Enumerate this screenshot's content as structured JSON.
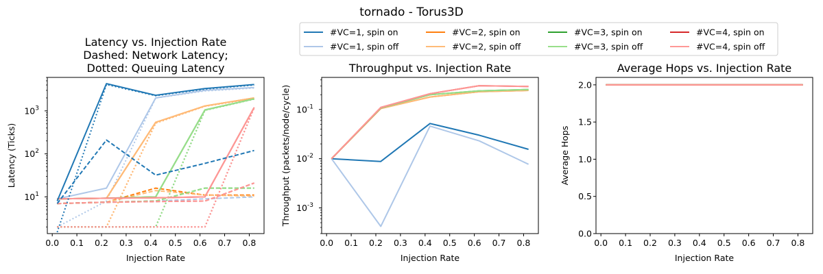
{
  "suptitle": "tornado - Torus3D",
  "legend": {
    "placement": "top-center",
    "entries": [
      {
        "label": "#VC=1, spin on",
        "color": "#1f77b4"
      },
      {
        "label": "#VC=1, spin off",
        "color": "#aec7e8"
      },
      {
        "label": "#VC=2, spin on",
        "color": "#ff7f0e"
      },
      {
        "label": "#VC=2, spin off",
        "color": "#ffbb78"
      },
      {
        "label": "#VC=3, spin on",
        "color": "#2ca02c"
      },
      {
        "label": "#VC=3, spin off",
        "color": "#98df8a"
      },
      {
        "label": "#VC=4, spin on",
        "color": "#d62728"
      },
      {
        "label": "#VC=4, spin off",
        "color": "#ff9896"
      }
    ]
  },
  "chart_data": [
    {
      "type": "line",
      "title": "Latency vs. Injection Rate\nDashed: Network Latency;\nDotted: Queuing Latency",
      "xlabel": "Injection Rate",
      "ylabel": "Latency (Ticks)",
      "xlim": [
        -0.02,
        0.86
      ],
      "ylim": [
        1.4,
        6000
      ],
      "yscale": "log",
      "grid": false,
      "xticks": [
        "0.0",
        "0.1",
        "0.2",
        "0.3",
        "0.4",
        "0.5",
        "0.6",
        "0.7",
        "0.8"
      ],
      "yticks": [
        "10^1",
        "10^2",
        "10^3"
      ],
      "x": [
        0.02,
        0.22,
        0.42,
        0.62,
        0.82
      ],
      "series": [
        {
          "name": "#VC=1, spin off",
          "color": "#aec7e8",
          "total": [
            9,
            16,
            2000,
            3000,
            3500
          ],
          "network": [
            7,
            7.5,
            8,
            9,
            10
          ],
          "queuing": [
            2,
            8,
            2000,
            2900,
            3400
          ]
        },
        {
          "name": "#VC=2, spin on",
          "color": "#ff7f0e",
          "total": [
            9,
            9.3,
            540,
            1300,
            2000
          ],
          "network": [
            7,
            7.5,
            16,
            11,
            11
          ],
          "queuing": [
            2,
            2,
            520,
            1280,
            1950
          ]
        },
        {
          "name": "#VC=2, spin off",
          "color": "#ffbb78",
          "total": [
            9,
            9.3,
            540,
            1300,
            2000
          ],
          "network": [
            7,
            7.5,
            14,
            11,
            10.5
          ],
          "queuing": [
            2,
            2,
            520,
            1280,
            1950
          ]
        },
        {
          "name": "#VC=3, spin on",
          "color": "#2ca02c",
          "total": [
            9,
            9.3,
            10,
            1050,
            1900
          ],
          "network": [
            7,
            7.5,
            8,
            16,
            16
          ],
          "queuing": [
            2,
            2,
            2,
            1030,
            1880
          ]
        },
        {
          "name": "#VC=3, spin off",
          "color": "#98df8a",
          "total": [
            9,
            9.3,
            10,
            1050,
            1900
          ],
          "network": [
            7,
            7.5,
            8,
            16,
            16
          ],
          "queuing": [
            2,
            2,
            2,
            1030,
            1880
          ]
        },
        {
          "name": "#VC=4, spin on",
          "color": "#d62728",
          "total": [
            9,
            9.3,
            9.5,
            10,
            1200
          ],
          "network": [
            7,
            7.5,
            7.8,
            8,
            21
          ],
          "queuing": [
            2,
            2,
            2,
            2,
            1180
          ]
        },
        {
          "name": "#VC=4, spin off",
          "color": "#ff9896",
          "total": [
            9,
            9.3,
            9.5,
            10,
            1200
          ],
          "network": [
            7,
            7.5,
            7.8,
            8,
            21
          ],
          "queuing": [
            2,
            2,
            2,
            2,
            1180
          ]
        },
        {
          "name": "#VC=1, spin on",
          "color": "#1f77b4",
          "total": [
            8,
            4300,
            2300,
            3300,
            4100
          ],
          "network": [
            7,
            210,
            32,
            60,
            120
          ],
          "queuing": [
            1.5,
            4100,
            2250,
            3200,
            4000
          ]
        }
      ]
    },
    {
      "type": "line",
      "title": "Throughput vs. Injection Rate",
      "xlabel": "Injection Rate",
      "ylabel": "Throughput (packets/node/cycle)",
      "xlim": [
        -0.02,
        0.86
      ],
      "ylim": [
        0.0003,
        0.45
      ],
      "yscale": "log",
      "grid": false,
      "xticks": [
        "0.0",
        "0.1",
        "0.2",
        "0.3",
        "0.4",
        "0.5",
        "0.6",
        "0.7",
        "0.8"
      ],
      "yticks": [
        "10^-3",
        "10^-2",
        "10^-1"
      ],
      "x": [
        0.02,
        0.22,
        0.42,
        0.62,
        0.82
      ],
      "series": [
        {
          "name": "#VC=1, spin on",
          "color": "#1f77b4",
          "values": [
            0.01,
            0.0088,
            0.052,
            0.03,
            0.0155
          ]
        },
        {
          "name": "#VC=1, spin off",
          "color": "#aec7e8",
          "values": [
            0.01,
            0.00042,
            0.046,
            0.023,
            0.0077
          ]
        },
        {
          "name": "#VC=2, spin on",
          "color": "#ff7f0e",
          "values": [
            0.01,
            0.105,
            0.18,
            0.23,
            0.245
          ]
        },
        {
          "name": "#VC=2, spin off",
          "color": "#ffbb78",
          "values": [
            0.01,
            0.105,
            0.18,
            0.23,
            0.245
          ]
        },
        {
          "name": "#VC=3, spin on",
          "color": "#2ca02c",
          "values": [
            0.01,
            0.108,
            0.2,
            0.24,
            0.255
          ]
        },
        {
          "name": "#VC=3, spin off",
          "color": "#98df8a",
          "values": [
            0.01,
            0.108,
            0.2,
            0.24,
            0.255
          ]
        },
        {
          "name": "#VC=4, spin on",
          "color": "#d62728",
          "values": [
            0.01,
            0.11,
            0.21,
            0.305,
            0.295
          ]
        },
        {
          "name": "#VC=4, spin off",
          "color": "#ff9896",
          "values": [
            0.01,
            0.11,
            0.21,
            0.305,
            0.295
          ]
        }
      ]
    },
    {
      "type": "line",
      "title": "Average Hops vs. Injection Rate",
      "xlabel": "Injection Rate",
      "ylabel": "Average Hops",
      "xlim": [
        -0.02,
        0.86
      ],
      "ylim": [
        0.0,
        2.1
      ],
      "yscale": "linear",
      "grid": false,
      "xticks": [
        "0.0",
        "0.1",
        "0.2",
        "0.3",
        "0.4",
        "0.5",
        "0.6",
        "0.7",
        "0.8"
      ],
      "yticks": [
        "0.0",
        "0.5",
        "1.0",
        "1.5",
        "2.0"
      ],
      "x": [
        0.02,
        0.22,
        0.42,
        0.62,
        0.82
      ],
      "series": [
        {
          "name": "#VC=1, spin on",
          "color": "#1f77b4",
          "values": [
            2,
            2,
            2,
            2,
            2
          ]
        },
        {
          "name": "#VC=1, spin off",
          "color": "#aec7e8",
          "values": [
            2,
            2,
            2,
            2,
            2
          ]
        },
        {
          "name": "#VC=2, spin on",
          "color": "#ff7f0e",
          "values": [
            2,
            2,
            2,
            2,
            2
          ]
        },
        {
          "name": "#VC=2, spin off",
          "color": "#ffbb78",
          "values": [
            2,
            2,
            2,
            2,
            2
          ]
        },
        {
          "name": "#VC=3, spin on",
          "color": "#2ca02c",
          "values": [
            2,
            2,
            2,
            2,
            2
          ]
        },
        {
          "name": "#VC=3, spin off",
          "color": "#98df8a",
          "values": [
            2,
            2,
            2,
            2,
            2
          ]
        },
        {
          "name": "#VC=4, spin on",
          "color": "#d62728",
          "values": [
            2,
            2,
            2,
            2,
            2
          ]
        },
        {
          "name": "#VC=4, spin off",
          "color": "#ff9896",
          "values": [
            2,
            2,
            2,
            2,
            2
          ]
        }
      ]
    }
  ]
}
